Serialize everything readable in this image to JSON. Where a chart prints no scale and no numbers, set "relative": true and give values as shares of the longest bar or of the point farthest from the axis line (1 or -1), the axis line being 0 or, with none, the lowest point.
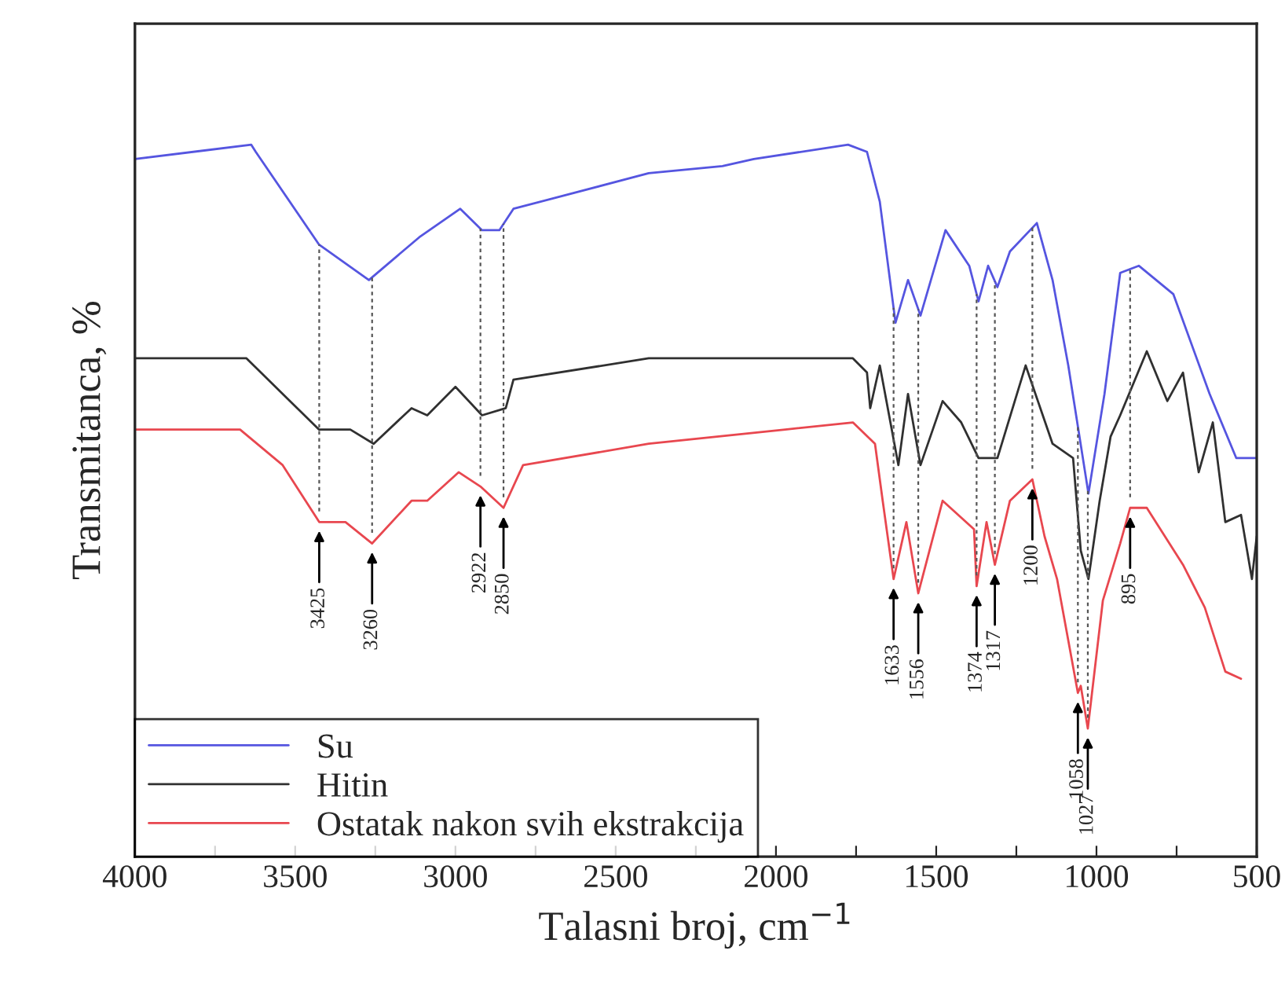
{
  "chart_data": {
    "type": "line",
    "relative": true,
    "xlabel": "Talasni broj, cm$^{−1}$",
    "ylabel": "Transmitanca, %",
    "xlim": [
      4000,
      500
    ],
    "xticks": [
      4000,
      {
        "value": 3750,
        "label": null
      },
      3500,
      {
        "value": 3250,
        "label": null
      },
      3000,
      {
        "value": 2750,
        "label": null
      },
      2500,
      {
        "value": 2250,
        "label": null
      },
      2000,
      {
        "value": 1750,
        "label": null
      },
      1500,
      {
        "value": 1250,
        "label": null
      },
      1000,
      {
        "value": 750,
        "label": null
      },
      500
    ],
    "tick_labels": "x",
    "grid": false,
    "legend": "bottom left",
    "series": [
      {
        "name": "Su",
        "color": "#5555e0",
        "x": [
          4000,
          3637,
          3623,
          3426,
          3270,
          3113,
          2985,
          2917,
          2863,
          2819,
          2397,
          2167,
          2069,
          1775,
          1716,
          1676,
          1627,
          1588,
          1549,
          1471,
          1397,
          1368,
          1338,
          1309,
          1270,
          1186,
          1137,
          1088,
          1025,
          975,
          926,
          868,
          760,
          647,
          564,
          500
        ],
        "values": [
          0.98,
          1.0,
          0.99,
          0.86,
          0.81,
          0.87,
          0.91,
          0.88,
          0.88,
          0.91,
          0.96,
          0.97,
          0.98,
          1.0,
          0.99,
          0.92,
          0.75,
          0.81,
          0.76,
          0.88,
          0.83,
          0.78,
          0.83,
          0.8,
          0.85,
          0.89,
          0.81,
          0.69,
          0.51,
          0.65,
          0.82,
          0.83,
          0.79,
          0.65,
          0.56,
          0.56
        ]
      },
      {
        "name": "Hitin",
        "color": "#303030",
        "x": [
          4000,
          3652,
          3426,
          3328,
          3255,
          3137,
          3088,
          3000,
          2917,
          2843,
          2819,
          2397,
          1971,
          1760,
          1716,
          1706,
          1676,
          1618,
          1588,
          1549,
          1480,
          1422,
          1368,
          1309,
          1221,
          1137,
          1073,
          1049,
          1025,
          990,
          956,
          926,
          843,
          779,
          730,
          681,
          637,
          598,
          549,
          515,
          500
        ],
        "values": [
          0.7,
          0.7,
          0.6,
          0.6,
          0.58,
          0.63,
          0.62,
          0.66,
          0.62,
          0.63,
          0.67,
          0.7,
          0.7,
          0.7,
          0.68,
          0.63,
          0.69,
          0.55,
          0.65,
          0.55,
          0.64,
          0.61,
          0.56,
          0.56,
          0.69,
          0.58,
          0.56,
          0.43,
          0.39,
          0.5,
          0.59,
          0.62,
          0.71,
          0.64,
          0.68,
          0.54,
          0.61,
          0.47,
          0.48,
          0.39,
          0.45
        ]
      },
      {
        "name": "Ostatak nakon svih ekstrakcija",
        "color": "#e8474f",
        "x": [
          4000,
          3672,
          3539,
          3425,
          3343,
          3260,
          3137,
          3088,
          2990,
          2922,
          2850,
          2789,
          2397,
          1971,
          1760,
          1691,
          1667,
          1633,
          1593,
          1556,
          1480,
          1382,
          1374,
          1343,
          1317,
          1270,
          1200,
          1162,
          1123,
          1058,
          1049,
          1027,
          980,
          926,
          895,
          843,
          730,
          662,
          598,
          549
        ],
        "values": [
          0.6,
          0.6,
          0.55,
          0.47,
          0.47,
          0.44,
          0.5,
          0.5,
          0.54,
          0.52,
          0.49,
          0.55,
          0.58,
          0.6,
          0.61,
          0.58,
          0.5,
          0.39,
          0.47,
          0.37,
          0.5,
          0.46,
          0.38,
          0.47,
          0.41,
          0.5,
          0.53,
          0.45,
          0.39,
          0.23,
          0.24,
          0.18,
          0.36,
          0.44,
          0.49,
          0.49,
          0.41,
          0.35,
          0.26,
          0.25
        ]
      }
    ],
    "annotations": [
      {
        "text": "3425",
        "x": 3425,
        "y": 0.47
      },
      {
        "text": "3260",
        "x": 3260,
        "y": 0.44
      },
      {
        "text": "2922",
        "x": 2922,
        "y": 0.52
      },
      {
        "text": "2850",
        "x": 2850,
        "y": 0.49
      },
      {
        "text": "1633",
        "x": 1633,
        "y": 0.39
      },
      {
        "text": "1556",
        "x": 1556,
        "y": 0.37
      },
      {
        "text": "1374",
        "x": 1374,
        "y": 0.38
      },
      {
        "text": "1317",
        "x": 1317,
        "y": 0.41
      },
      {
        "text": "1200",
        "x": 1200,
        "y": 0.53
      },
      {
        "text": "1058",
        "x": 1058,
        "y": 0.23
      },
      {
        "text": "1027",
        "x": 1027,
        "y": 0.18
      },
      {
        "text": "895",
        "x": 895,
        "y": 0.49
      }
    ]
  }
}
